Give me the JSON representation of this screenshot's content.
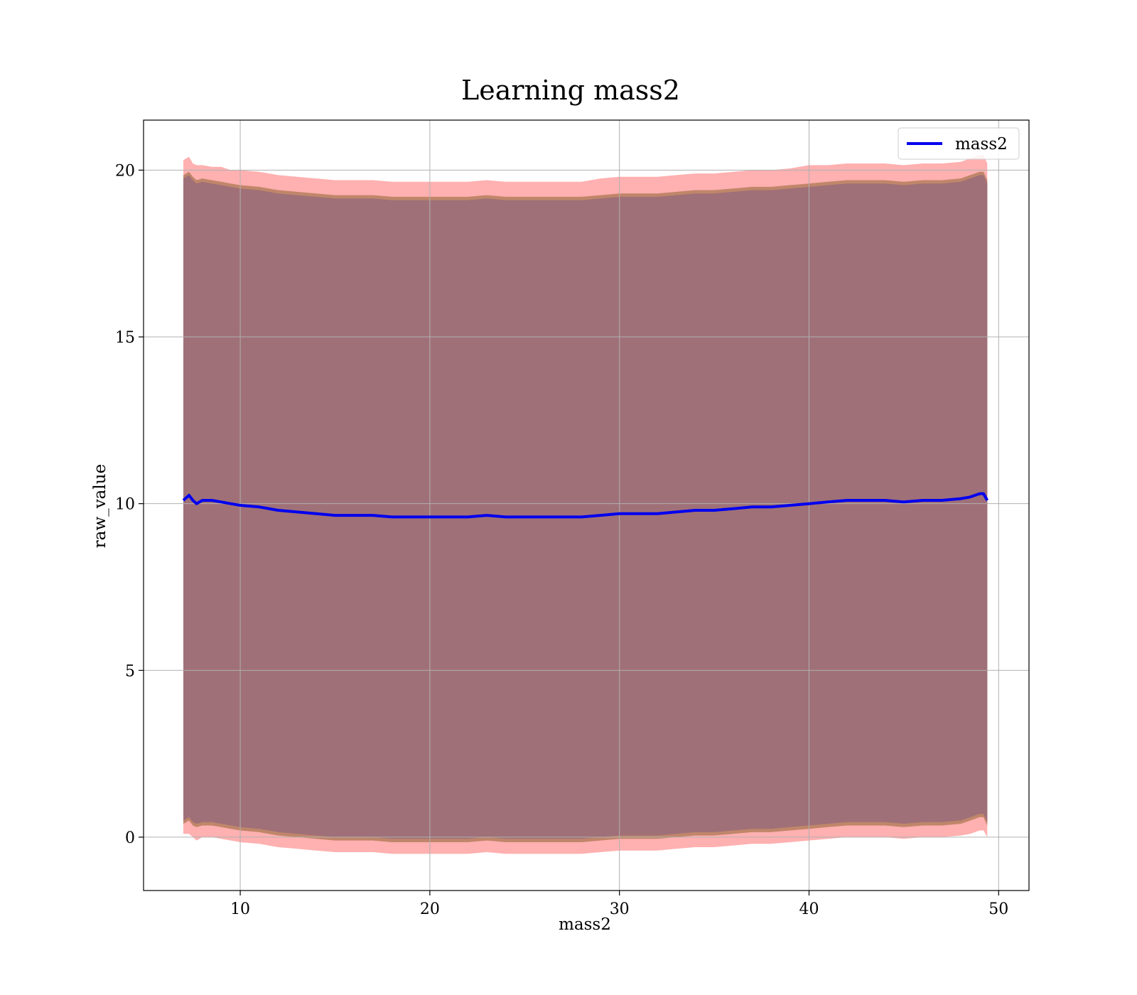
{
  "chart_data": {
    "type": "line",
    "title": "Learning mass2",
    "xlabel": "mass2",
    "ylabel": "raw_value",
    "xlim": [
      4.9,
      51.6
    ],
    "ylim": [
      -1.6,
      21.5
    ],
    "xticks": [
      10,
      20,
      30,
      40,
      50
    ],
    "yticks": [
      0,
      5,
      10,
      15,
      20
    ],
    "grid": true,
    "legend": {
      "position": "top-right",
      "entries": [
        "mass2"
      ]
    },
    "colors": {
      "line": "#0000ee",
      "outer_band": "#ffb0b0",
      "middle_band": "#c0866a",
      "inner_band": "#a07078",
      "grid": "#b0b0b0"
    },
    "series": [
      {
        "name": "mass2",
        "x": [
          7.0,
          7.3,
          7.5,
          7.7,
          8.0,
          8.5,
          9.0,
          9.5,
          10.0,
          11.0,
          12.0,
          13.0,
          14.0,
          15.0,
          16.0,
          17.0,
          18.0,
          19.0,
          20.0,
          21.0,
          22.0,
          23.0,
          24.0,
          25.0,
          26.0,
          27.0,
          28.0,
          29.0,
          30.0,
          31.0,
          32.0,
          33.0,
          34.0,
          35.0,
          36.0,
          37.0,
          38.0,
          39.0,
          40.0,
          41.0,
          42.0,
          43.0,
          44.0,
          45.0,
          46.0,
          47.0,
          48.0,
          48.5,
          49.0,
          49.2,
          49.4
        ],
        "y": [
          10.1,
          10.25,
          10.1,
          10.0,
          10.1,
          10.1,
          10.05,
          10.0,
          9.95,
          9.9,
          9.8,
          9.75,
          9.7,
          9.65,
          9.65,
          9.65,
          9.6,
          9.6,
          9.6,
          9.6,
          9.6,
          9.65,
          9.6,
          9.6,
          9.6,
          9.6,
          9.6,
          9.65,
          9.7,
          9.7,
          9.7,
          9.75,
          9.8,
          9.8,
          9.85,
          9.9,
          9.9,
          9.95,
          10.0,
          10.05,
          10.1,
          10.1,
          10.1,
          10.05,
          10.1,
          10.1,
          10.15,
          10.2,
          10.3,
          10.3,
          10.1
        ]
      }
    ],
    "bands": {
      "outer_upper": [
        20.3,
        20.4,
        20.2,
        20.15,
        20.15,
        20.1,
        20.1,
        20.0,
        20.0,
        19.95,
        19.85,
        19.8,
        19.75,
        19.7,
        19.7,
        19.7,
        19.65,
        19.65,
        19.65,
        19.65,
        19.65,
        19.7,
        19.65,
        19.65,
        19.65,
        19.65,
        19.65,
        19.75,
        19.8,
        19.8,
        19.8,
        19.85,
        19.9,
        19.9,
        19.95,
        20.0,
        20.0,
        20.05,
        20.15,
        20.15,
        20.2,
        20.2,
        20.2,
        20.15,
        20.2,
        20.2,
        20.25,
        20.35,
        20.45,
        20.45,
        20.2
      ],
      "outer_lower": [
        0.1,
        0.1,
        0.0,
        -0.1,
        0.0,
        0.0,
        -0.05,
        -0.1,
        -0.15,
        -0.2,
        -0.3,
        -0.35,
        -0.4,
        -0.45,
        -0.45,
        -0.45,
        -0.5,
        -0.5,
        -0.5,
        -0.5,
        -0.5,
        -0.45,
        -0.5,
        -0.5,
        -0.5,
        -0.5,
        -0.5,
        -0.45,
        -0.4,
        -0.4,
        -0.4,
        -0.35,
        -0.3,
        -0.3,
        -0.25,
        -0.2,
        -0.2,
        -0.15,
        -0.1,
        -0.05,
        0.0,
        0.0,
        0.0,
        -0.05,
        0.0,
        0.0,
        0.05,
        0.1,
        0.2,
        0.2,
        0.0
      ],
      "middle_upper": [
        19.85,
        19.95,
        19.8,
        19.7,
        19.75,
        19.7,
        19.65,
        19.6,
        19.55,
        19.5,
        19.4,
        19.35,
        19.3,
        19.25,
        19.25,
        19.25,
        19.2,
        19.2,
        19.2,
        19.2,
        19.2,
        19.25,
        19.2,
        19.2,
        19.2,
        19.2,
        19.2,
        19.25,
        19.3,
        19.3,
        19.3,
        19.35,
        19.4,
        19.4,
        19.45,
        19.5,
        19.5,
        19.55,
        19.6,
        19.65,
        19.7,
        19.7,
        19.7,
        19.65,
        19.7,
        19.7,
        19.75,
        19.85,
        19.95,
        19.95,
        19.7
      ],
      "middle_lower": [
        0.4,
        0.5,
        0.35,
        0.3,
        0.35,
        0.35,
        0.3,
        0.25,
        0.2,
        0.15,
        0.05,
        0.0,
        -0.05,
        -0.1,
        -0.1,
        -0.1,
        -0.15,
        -0.15,
        -0.15,
        -0.15,
        -0.15,
        -0.1,
        -0.15,
        -0.15,
        -0.15,
        -0.15,
        -0.15,
        -0.1,
        -0.05,
        -0.05,
        -0.05,
        0.0,
        0.05,
        0.05,
        0.1,
        0.15,
        0.15,
        0.2,
        0.25,
        0.3,
        0.35,
        0.35,
        0.35,
        0.3,
        0.35,
        0.35,
        0.4,
        0.5,
        0.6,
        0.6,
        0.35
      ],
      "inner_upper": [
        19.75,
        19.85,
        19.7,
        19.6,
        19.65,
        19.6,
        19.55,
        19.5,
        19.45,
        19.4,
        19.3,
        19.25,
        19.2,
        19.15,
        19.15,
        19.15,
        19.1,
        19.1,
        19.1,
        19.1,
        19.1,
        19.15,
        19.1,
        19.1,
        19.1,
        19.1,
        19.1,
        19.15,
        19.2,
        19.2,
        19.2,
        19.25,
        19.3,
        19.3,
        19.35,
        19.4,
        19.4,
        19.45,
        19.5,
        19.55,
        19.6,
        19.6,
        19.6,
        19.55,
        19.6,
        19.6,
        19.65,
        19.75,
        19.85,
        19.85,
        19.6
      ],
      "inner_lower": [
        0.5,
        0.6,
        0.45,
        0.4,
        0.45,
        0.45,
        0.4,
        0.35,
        0.3,
        0.25,
        0.15,
        0.1,
        0.05,
        0.0,
        0.0,
        0.0,
        -0.05,
        -0.05,
        -0.05,
        -0.05,
        -0.05,
        0.0,
        -0.05,
        -0.05,
        -0.05,
        -0.05,
        -0.05,
        0.0,
        0.05,
        0.05,
        0.05,
        0.1,
        0.15,
        0.15,
        0.2,
        0.25,
        0.25,
        0.3,
        0.35,
        0.4,
        0.45,
        0.45,
        0.45,
        0.4,
        0.45,
        0.45,
        0.5,
        0.6,
        0.7,
        0.7,
        0.45
      ]
    }
  }
}
